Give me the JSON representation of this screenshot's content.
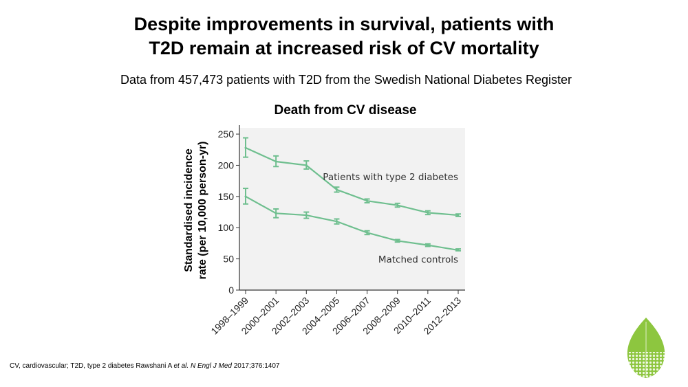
{
  "slide": {
    "title_line1": "Despite improvements in survival, patients with",
    "title_line2": "T2D remain at increased risk of CV mortality",
    "subtitle": "Data from 457,473 patients with T2D from the Swedish National Diabetes Register",
    "footnote_plain": "CV, cardiovascular; T2D, type 2 diabetes Rawshani A ",
    "footnote_etal": "et al.",
    "footnote_journal": "N Engl J Med",
    "footnote_citation": "2017;376:1407"
  },
  "colors": {
    "series_line": "#6fbf8f",
    "plot_background": "#f2f2f2",
    "axis": "#333333",
    "logo_green": "#8dc63f"
  },
  "logo": {
    "icon": "green-leaf-logo"
  },
  "chart_data": {
    "type": "line",
    "title": "Death from CV disease",
    "ylabel_line1": "Standardised incidence",
    "ylabel_line2": "rate (per 10,000 person-yr)",
    "xlabel": "",
    "categories": [
      "1998–1999",
      "2000–2001",
      "2002–2003",
      "2004–2005",
      "2006–2007",
      "2008–2009",
      "2010–2011",
      "2012–2013"
    ],
    "yticks": [
      0,
      50,
      100,
      150,
      200,
      250
    ],
    "ylim": [
      0,
      260
    ],
    "grid": false,
    "series": [
      {
        "name": "Patients with type 2 diabetes",
        "values": [
          228,
          206,
          200,
          161,
          143,
          136,
          124,
          120
        ],
        "err_low": [
          213,
          198,
          194,
          157,
          140,
          133,
          121,
          118
        ],
        "err_high": [
          244,
          215,
          207,
          165,
          146,
          139,
          127,
          122
        ]
      },
      {
        "name": "Matched controls",
        "values": [
          150,
          123,
          120,
          110,
          92,
          79,
          72,
          64
        ],
        "err_low": [
          138,
          116,
          115,
          106,
          89,
          77,
          70,
          63
        ],
        "err_high": [
          163,
          130,
          125,
          114,
          95,
          81,
          74,
          66
        ]
      }
    ]
  }
}
